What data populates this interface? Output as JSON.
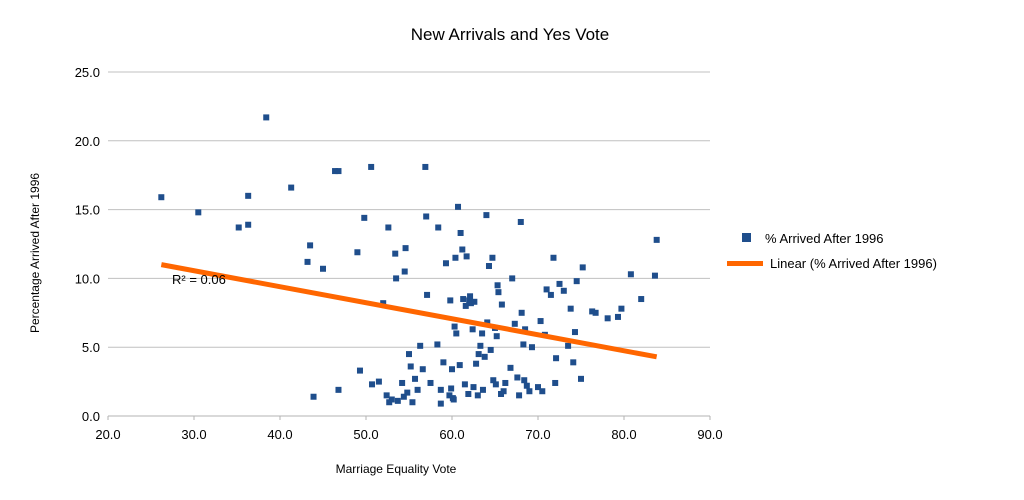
{
  "chart_data": {
    "type": "scatter",
    "title": "New Arrivals and Yes Vote",
    "xlabel": "Marriage Equality Vote",
    "ylabel": "Percentage Arrived After 1996",
    "xlim": [
      20,
      90
    ],
    "ylim": [
      0,
      25
    ],
    "x_ticks": [
      "20.0",
      "30.0",
      "40.0",
      "50.0",
      "60.0",
      "70.0",
      "80.0",
      "90.0"
    ],
    "y_ticks": [
      "0.0",
      "5.0",
      "10.0",
      "15.0",
      "20.0",
      "25.0"
    ],
    "grid": "horizontal",
    "legend_position": "right",
    "legend": [
      "% Arrived After 1996",
      "Linear (% Arrived After 1996)"
    ],
    "annotation": "R² = 0.06",
    "colors": {
      "points": "#1f4e8c",
      "trendline": "#ff6600",
      "grid": "#c0c0c0"
    },
    "trendline": {
      "type": "linear",
      "x": [
        26.2,
        83.8
      ],
      "y": [
        11.0,
        4.3
      ]
    },
    "series": [
      {
        "name": "% Arrived After 1996",
        "points": [
          [
            26.2,
            15.9
          ],
          [
            30.5,
            14.8
          ],
          [
            35.2,
            13.7
          ],
          [
            36.3,
            16.0
          ],
          [
            36.3,
            13.9
          ],
          [
            38.4,
            21.7
          ],
          [
            41.3,
            16.6
          ],
          [
            43.2,
            11.2
          ],
          [
            43.5,
            12.4
          ],
          [
            43.9,
            1.4
          ],
          [
            45.0,
            10.7
          ],
          [
            46.4,
            17.8
          ],
          [
            46.8,
            17.8
          ],
          [
            46.8,
            1.9
          ],
          [
            49.0,
            11.9
          ],
          [
            49.3,
            3.3
          ],
          [
            49.8,
            14.4
          ],
          [
            50.6,
            18.1
          ],
          [
            50.7,
            2.3
          ],
          [
            51.5,
            2.5
          ],
          [
            52.0,
            8.2
          ],
          [
            52.4,
            1.5
          ],
          [
            52.6,
            13.7
          ],
          [
            52.7,
            1.0
          ],
          [
            53.0,
            1.2
          ],
          [
            53.4,
            11.8
          ],
          [
            53.5,
            10.0
          ],
          [
            53.7,
            1.1
          ],
          [
            54.2,
            2.4
          ],
          [
            54.4,
            1.4
          ],
          [
            54.5,
            10.5
          ],
          [
            54.6,
            12.2
          ],
          [
            54.8,
            1.7
          ],
          [
            55.0,
            4.5
          ],
          [
            55.2,
            3.6
          ],
          [
            55.4,
            1.0
          ],
          [
            55.7,
            2.7
          ],
          [
            56.0,
            1.9
          ],
          [
            56.3,
            5.1
          ],
          [
            56.6,
            3.4
          ],
          [
            56.9,
            18.1
          ],
          [
            57.0,
            14.5
          ],
          [
            57.1,
            8.8
          ],
          [
            57.5,
            2.4
          ],
          [
            58.3,
            5.2
          ],
          [
            58.4,
            13.7
          ],
          [
            58.7,
            1.9
          ],
          [
            58.7,
            0.9
          ],
          [
            59.0,
            3.9
          ],
          [
            59.3,
            11.1
          ],
          [
            59.7,
            1.5
          ],
          [
            59.8,
            8.4
          ],
          [
            59.9,
            2.0
          ],
          [
            60.0,
            3.4
          ],
          [
            60.1,
            1.3
          ],
          [
            60.2,
            1.2
          ],
          [
            60.3,
            6.5
          ],
          [
            60.4,
            11.5
          ],
          [
            60.5,
            6.0
          ],
          [
            60.7,
            15.2
          ],
          [
            60.9,
            3.7
          ],
          [
            61.0,
            13.3
          ],
          [
            61.2,
            12.1
          ],
          [
            61.3,
            8.5
          ],
          [
            61.5,
            2.3
          ],
          [
            61.6,
            8.0
          ],
          [
            61.7,
            11.6
          ],
          [
            61.9,
            1.6
          ],
          [
            62.0,
            8.4
          ],
          [
            62.1,
            8.7
          ],
          [
            62.2,
            8.2
          ],
          [
            62.4,
            6.3
          ],
          [
            62.5,
            2.1
          ],
          [
            62.6,
            8.3
          ],
          [
            62.8,
            3.8
          ],
          [
            63.0,
            1.5
          ],
          [
            63.1,
            4.5
          ],
          [
            63.3,
            5.1
          ],
          [
            63.5,
            6.0
          ],
          [
            63.6,
            1.9
          ],
          [
            63.8,
            4.3
          ],
          [
            64.0,
            14.6
          ],
          [
            64.1,
            6.8
          ],
          [
            64.3,
            10.9
          ],
          [
            64.5,
            4.8
          ],
          [
            64.7,
            11.5
          ],
          [
            64.8,
            2.6
          ],
          [
            65.0,
            6.4
          ],
          [
            65.1,
            2.3
          ],
          [
            65.2,
            5.8
          ],
          [
            65.3,
            9.5
          ],
          [
            65.4,
            9.0
          ],
          [
            65.7,
            1.6
          ],
          [
            65.8,
            8.1
          ],
          [
            66.0,
            1.8
          ],
          [
            66.2,
            2.4
          ],
          [
            66.8,
            3.5
          ],
          [
            67.0,
            10.0
          ],
          [
            67.3,
            6.7
          ],
          [
            67.6,
            2.8
          ],
          [
            67.8,
            1.5
          ],
          [
            68.0,
            14.1
          ],
          [
            68.1,
            7.5
          ],
          [
            68.3,
            5.2
          ],
          [
            68.4,
            2.6
          ],
          [
            68.5,
            6.3
          ],
          [
            68.7,
            2.2
          ],
          [
            69.0,
            1.8
          ],
          [
            69.3,
            5.0
          ],
          [
            70.0,
            2.1
          ],
          [
            70.3,
            6.9
          ],
          [
            70.5,
            1.8
          ],
          [
            70.8,
            5.9
          ],
          [
            71.0,
            9.2
          ],
          [
            71.5,
            8.8
          ],
          [
            71.8,
            11.5
          ],
          [
            72.0,
            2.4
          ],
          [
            72.1,
            4.2
          ],
          [
            72.5,
            9.6
          ],
          [
            73.0,
            9.1
          ],
          [
            73.5,
            5.1
          ],
          [
            73.8,
            7.8
          ],
          [
            74.1,
            3.9
          ],
          [
            74.3,
            6.1
          ],
          [
            74.5,
            9.8
          ],
          [
            75.0,
            2.7
          ],
          [
            75.2,
            10.8
          ],
          [
            76.3,
            7.6
          ],
          [
            76.7,
            7.5
          ],
          [
            78.1,
            7.1
          ],
          [
            79.3,
            7.2
          ],
          [
            79.7,
            7.8
          ],
          [
            80.8,
            10.3
          ],
          [
            82.0,
            8.5
          ],
          [
            83.6,
            10.2
          ],
          [
            83.8,
            12.8
          ]
        ]
      }
    ]
  }
}
